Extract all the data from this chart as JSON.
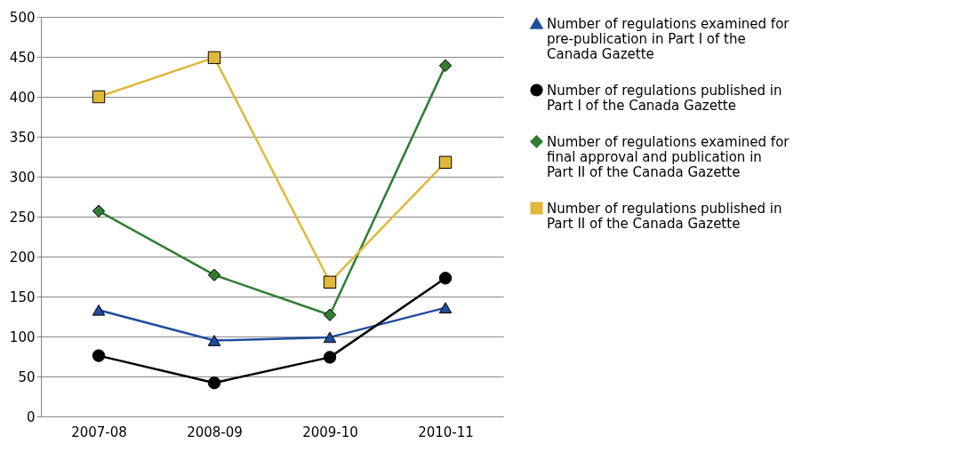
{
  "chart_data": {
    "type": "line",
    "categories": [
      "2007-08",
      "2008-09",
      "2009-10",
      "2010-11"
    ],
    "ylim": [
      0,
      500
    ],
    "yticks": [
      0,
      50,
      100,
      150,
      200,
      250,
      300,
      350,
      400,
      450,
      500
    ],
    "grid": "y",
    "legend": "right",
    "series": [
      {
        "name": "Number of regulations examined for pre-publication in Part I of the Canada Gazette",
        "color": "#1f4e9c",
        "marker": "triangle",
        "values": [
          133,
          95,
          99,
          136
        ]
      },
      {
        "name": "Number of regulations published in Part I of the Canada Gazette",
        "color": "#000000",
        "marker": "circle",
        "values": [
          76,
          42,
          74,
          173
        ]
      },
      {
        "name": "Number of regulations examined for final approval and publication in Part II of the Canada Gazette",
        "color": "#2e7d32",
        "marker": "diamond",
        "values": [
          257,
          177,
          127,
          439
        ]
      },
      {
        "name": "Number of regulations published in Part II of the Canada Gazette",
        "color": "#e0b83a",
        "marker": "square",
        "values": [
          400,
          449,
          168,
          318
        ]
      }
    ]
  }
}
